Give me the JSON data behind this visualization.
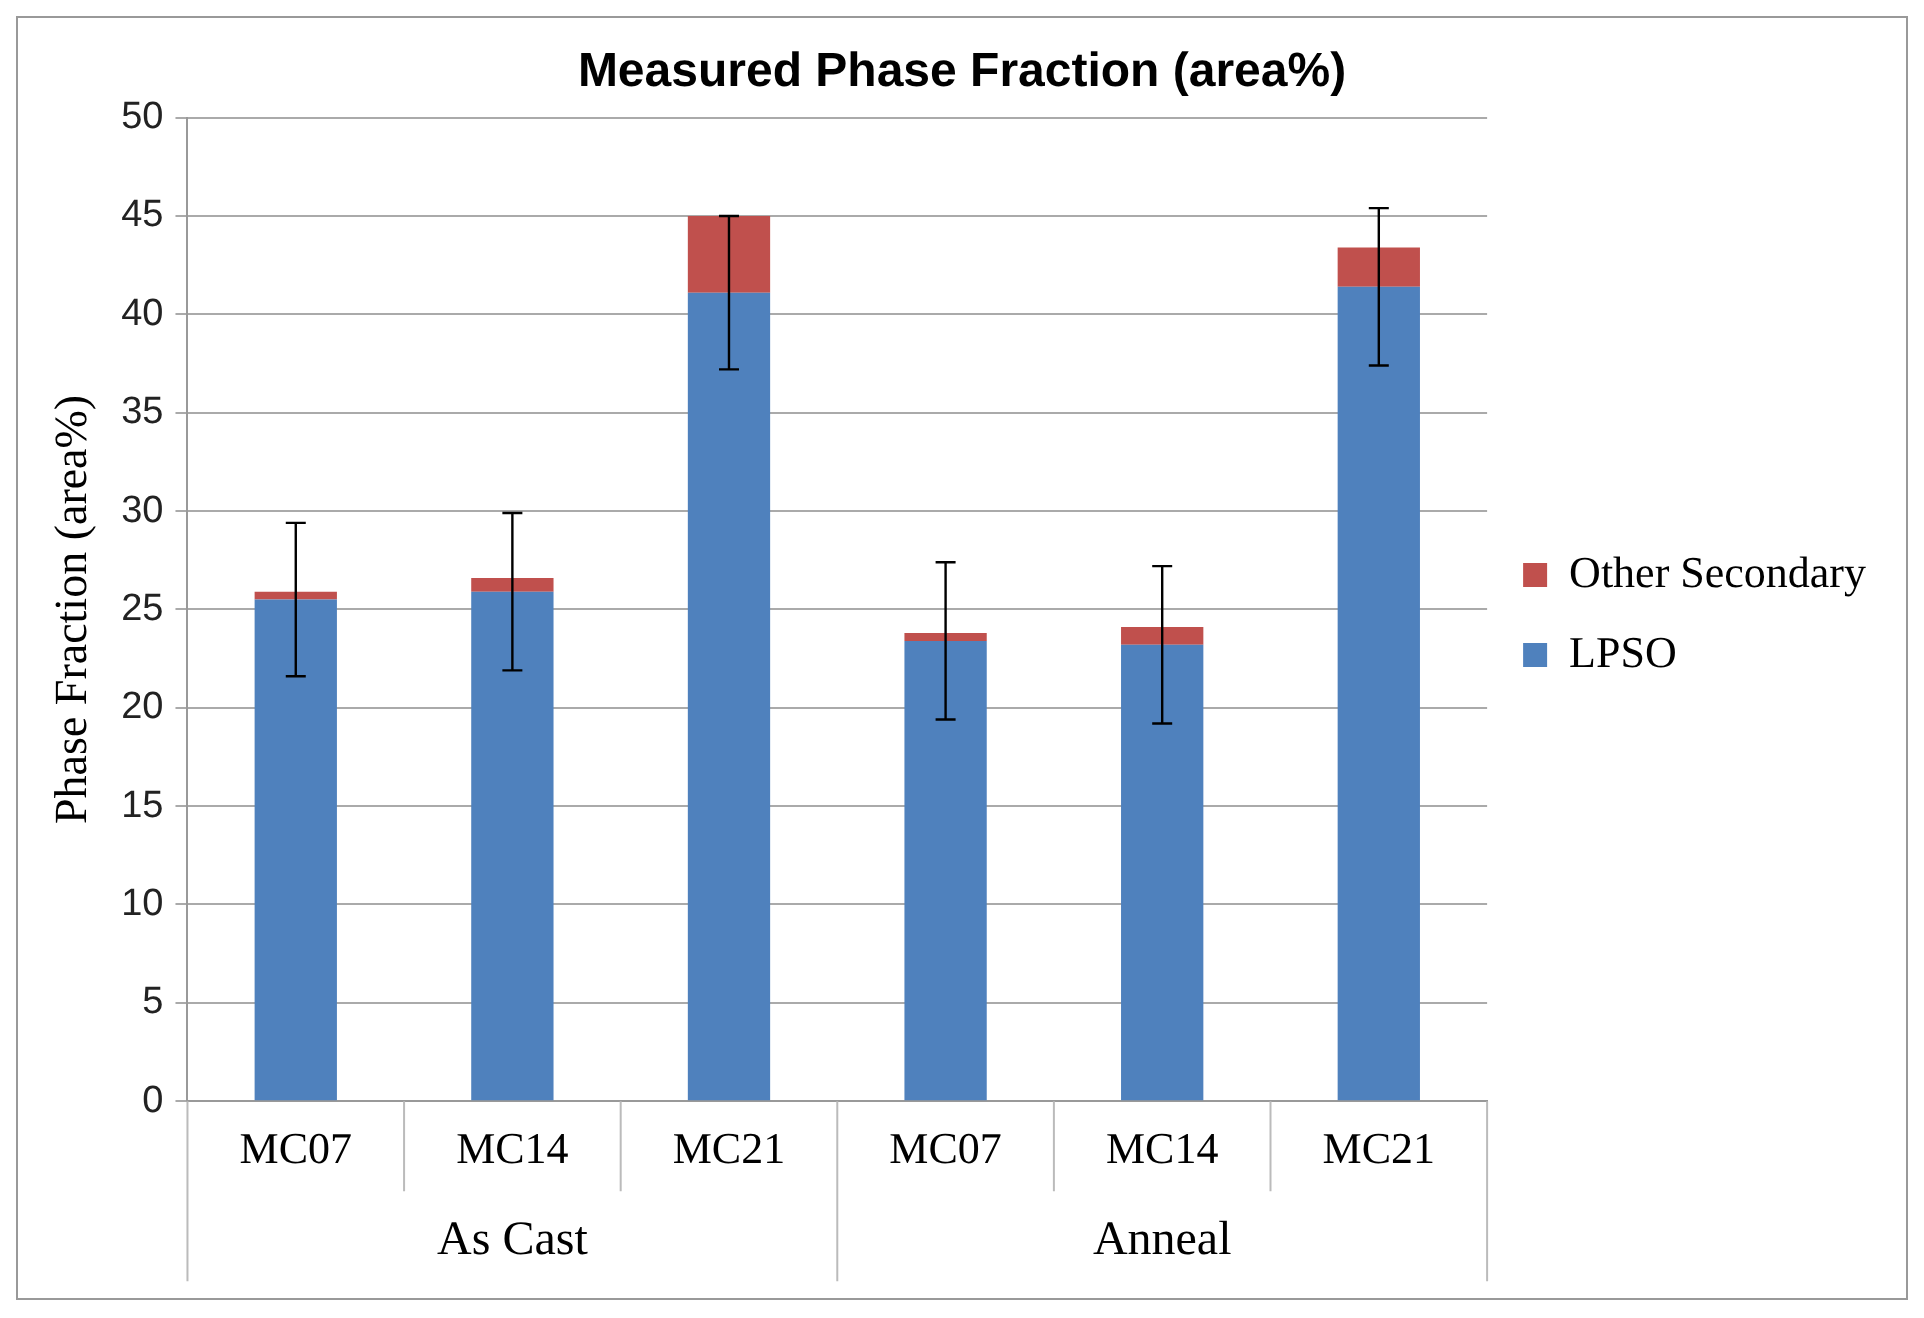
{
  "chart_data": {
    "type": "bar",
    "title": "Measured Phase Fraction (area%)",
    "ylabel": "Phase Fraction (area%)",
    "categories": [
      "MC07",
      "MC14",
      "MC21",
      "MC07",
      "MC14",
      "MC21"
    ],
    "annotations": [
      "As Cast",
      "Anneal"
    ],
    "stacked": true,
    "ylim": [
      0,
      50
    ],
    "yticks": [
      0,
      5,
      10,
      15,
      20,
      25,
      30,
      35,
      40,
      45,
      50
    ],
    "grid": "y",
    "legend": "right",
    "series": [
      {
        "name": "LPSO",
        "color": "#4f81bd",
        "values": [
          25.5,
          25.9,
          41.1,
          23.4,
          23.2,
          41.4
        ],
        "errors": [
          3.9,
          4.0,
          3.9,
          4.0,
          4.0,
          4.0
        ]
      },
      {
        "name": "Other Secondary",
        "color": "#c0504d",
        "values": [
          0.4,
          0.7,
          3.9,
          0.4,
          0.9,
          2.0
        ]
      }
    ]
  }
}
